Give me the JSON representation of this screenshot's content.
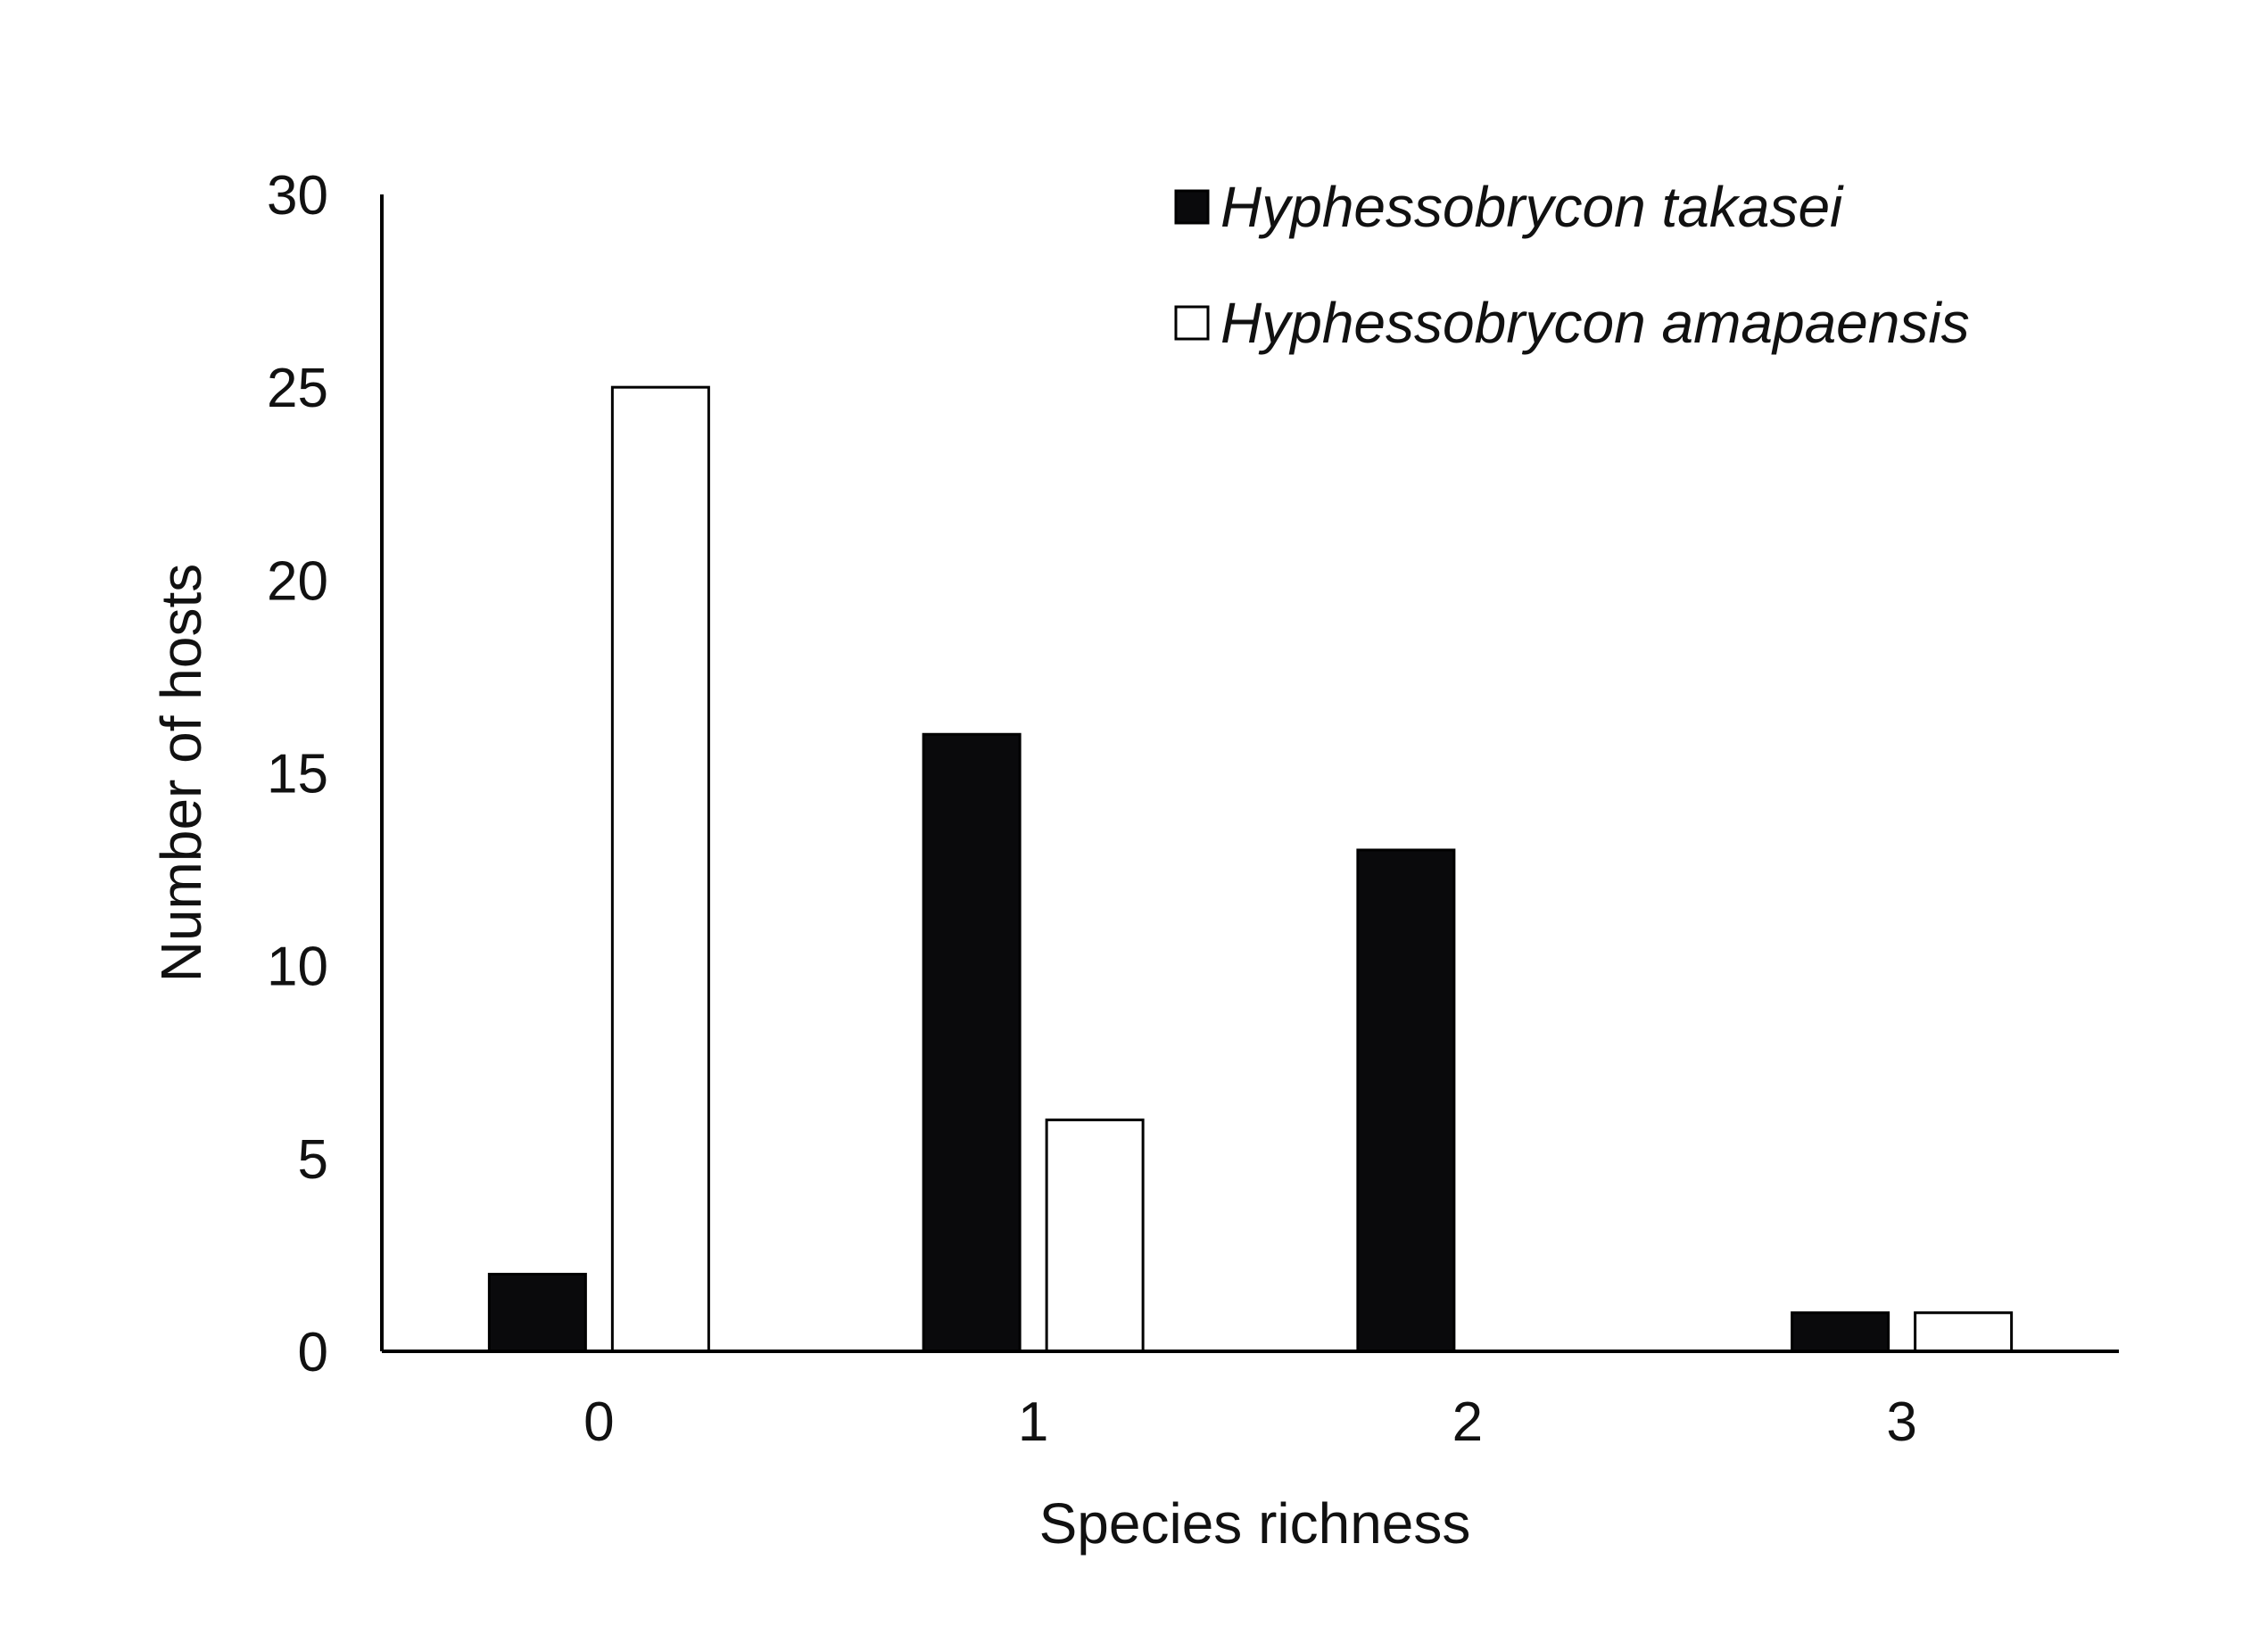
{
  "chart_data": {
    "type": "bar",
    "categories": [
      "0",
      "1",
      "2",
      "3"
    ],
    "series": [
      {
        "name": "Hyphessobrycon takasei",
        "values": [
          2,
          16,
          13,
          1
        ],
        "fill": "#0a0a0c"
      },
      {
        "name": "Hyphessobrycon amapaensis",
        "values": [
          25,
          6,
          0,
          1
        ],
        "fill": "#ffffff"
      }
    ],
    "y_ticks": [
      "0",
      "5",
      "10",
      "15",
      "20",
      "25",
      "30"
    ],
    "xlabel": "Species richness",
    "ylabel": "Number of hosts",
    "ylim": [
      0,
      30
    ],
    "grid": false,
    "legend_position": "top-right",
    "colors": {
      "axis": "#000000",
      "bar_stroke": "#000000",
      "text": "#111111"
    }
  }
}
